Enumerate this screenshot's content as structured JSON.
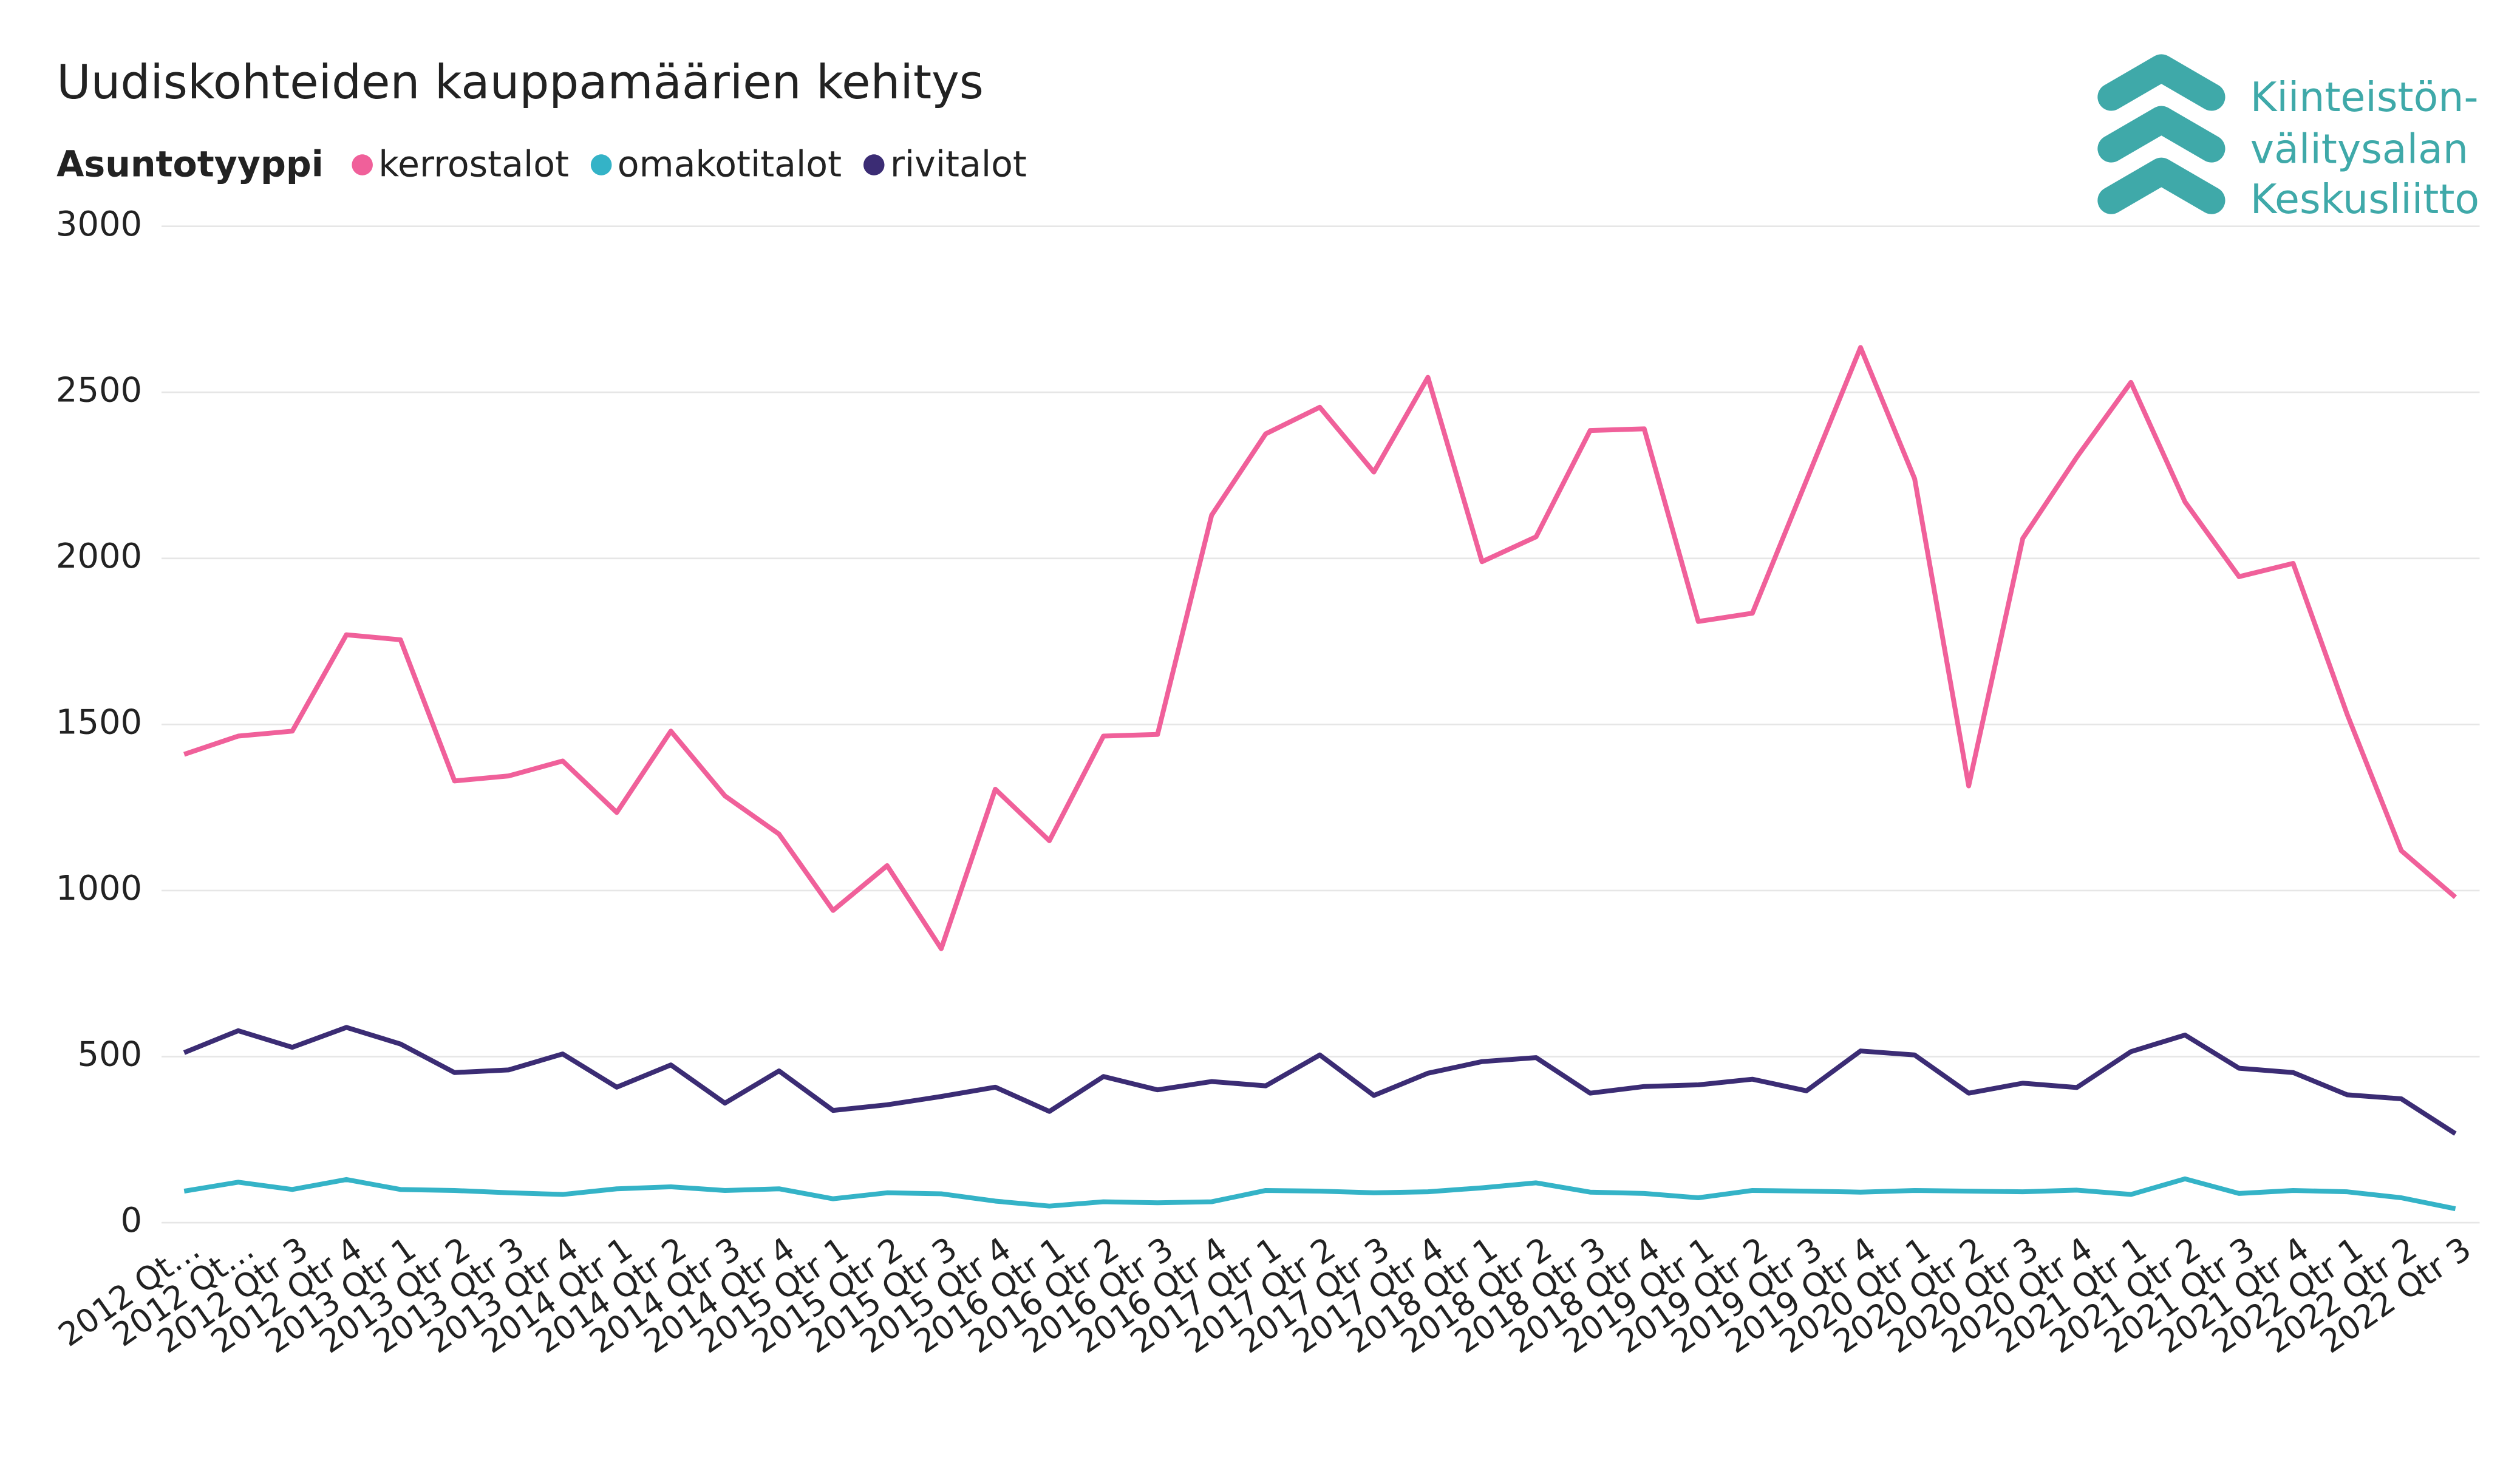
{
  "chart_data": {
    "type": "line",
    "title": "Uudiskohteiden kauppamäärien kehitys",
    "legend_title": "Asuntotyyppi",
    "legend": "top-left",
    "grid": true,
    "logo": [
      "Kiinteistön-",
      "välitysalan",
      "Keskusliitto"
    ],
    "categories": [
      "2012 Qt…",
      "2012 Qt…",
      "2012 Qtr 3",
      "2012 Qtr 4",
      "2013 Qtr 1",
      "2013 Qtr 2",
      "2013 Qtr 3",
      "2013 Qtr 4",
      "2014 Qtr 1",
      "2014 Qtr 2",
      "2014 Qtr 3",
      "2014 Qtr 4",
      "2015 Qtr 1",
      "2015 Qtr 2",
      "2015 Qtr 3",
      "2015 Qtr 4",
      "2016 Qtr 1",
      "2016 Qtr 2",
      "2016 Qtr 3",
      "2016 Qtr 4",
      "2017 Qtr 1",
      "2017 Qtr 2",
      "2017 Qtr 3",
      "2017 Qtr 4",
      "2018 Qtr 1",
      "2018 Qtr 2",
      "2018 Qtr 3",
      "2018 Qtr 4",
      "2019 Qtr 1",
      "2019 Qtr 2",
      "2019 Qtr 3",
      "2019 Qtr 4",
      "2020 Qtr 1",
      "2020 Qtr 2",
      "2020 Qtr 3",
      "2020 Qtr 4",
      "2021 Qtr 1",
      "2021 Qtr 2",
      "2021 Qtr 3",
      "2021 Qtr 4",
      "2022 Qtr 1",
      "2022 Qtr 2",
      "2022 Qtr 3"
    ],
    "series": [
      {
        "name": "kerrostalot",
        "color": "#f0609a",
        "values": [
          1410,
          1465,
          1480,
          1770,
          1755,
          1330,
          1345,
          1390,
          1235,
          1480,
          1285,
          1170,
          940,
          1075,
          825,
          1305,
          1150,
          1465,
          1470,
          2130,
          2375,
          2455,
          2260,
          2545,
          1990,
          2065,
          2385,
          2390,
          1810,
          1835,
          2235,
          2635,
          2240,
          1315,
          2060,
          2305,
          2530,
          2170,
          1945,
          1985,
          1530,
          1120,
          980
        ]
      },
      {
        "name": "omakotitalot",
        "color": "#34b3c7",
        "values": [
          95,
          122,
          100,
          130,
          100,
          97,
          90,
          85,
          102,
          108,
          97,
          102,
          72,
          90,
          87,
          65,
          50,
          63,
          60,
          63,
          97,
          95,
          90,
          93,
          105,
          120,
          92,
          88,
          75,
          97,
          95,
          92,
          97,
          95,
          93,
          98,
          85,
          132,
          88,
          97,
          93,
          75,
          42
        ]
      },
      {
        "name": "rivitalot",
        "color": "#3b2c74",
        "values": [
          512,
          578,
          528,
          588,
          538,
          452,
          460,
          508,
          408,
          475,
          360,
          457,
          338,
          355,
          380,
          408,
          335,
          440,
          400,
          425,
          412,
          505,
          383,
          450,
          485,
          497,
          390,
          410,
          415,
          432,
          397,
          517,
          505,
          390,
          420,
          407,
          515,
          565,
          465,
          452,
          385,
          373,
          268
        ]
      }
    ],
    "ylim": [
      0,
      3000
    ],
    "yticks": [
      0,
      500,
      1000,
      1500,
      2000,
      2500,
      3000
    ]
  }
}
